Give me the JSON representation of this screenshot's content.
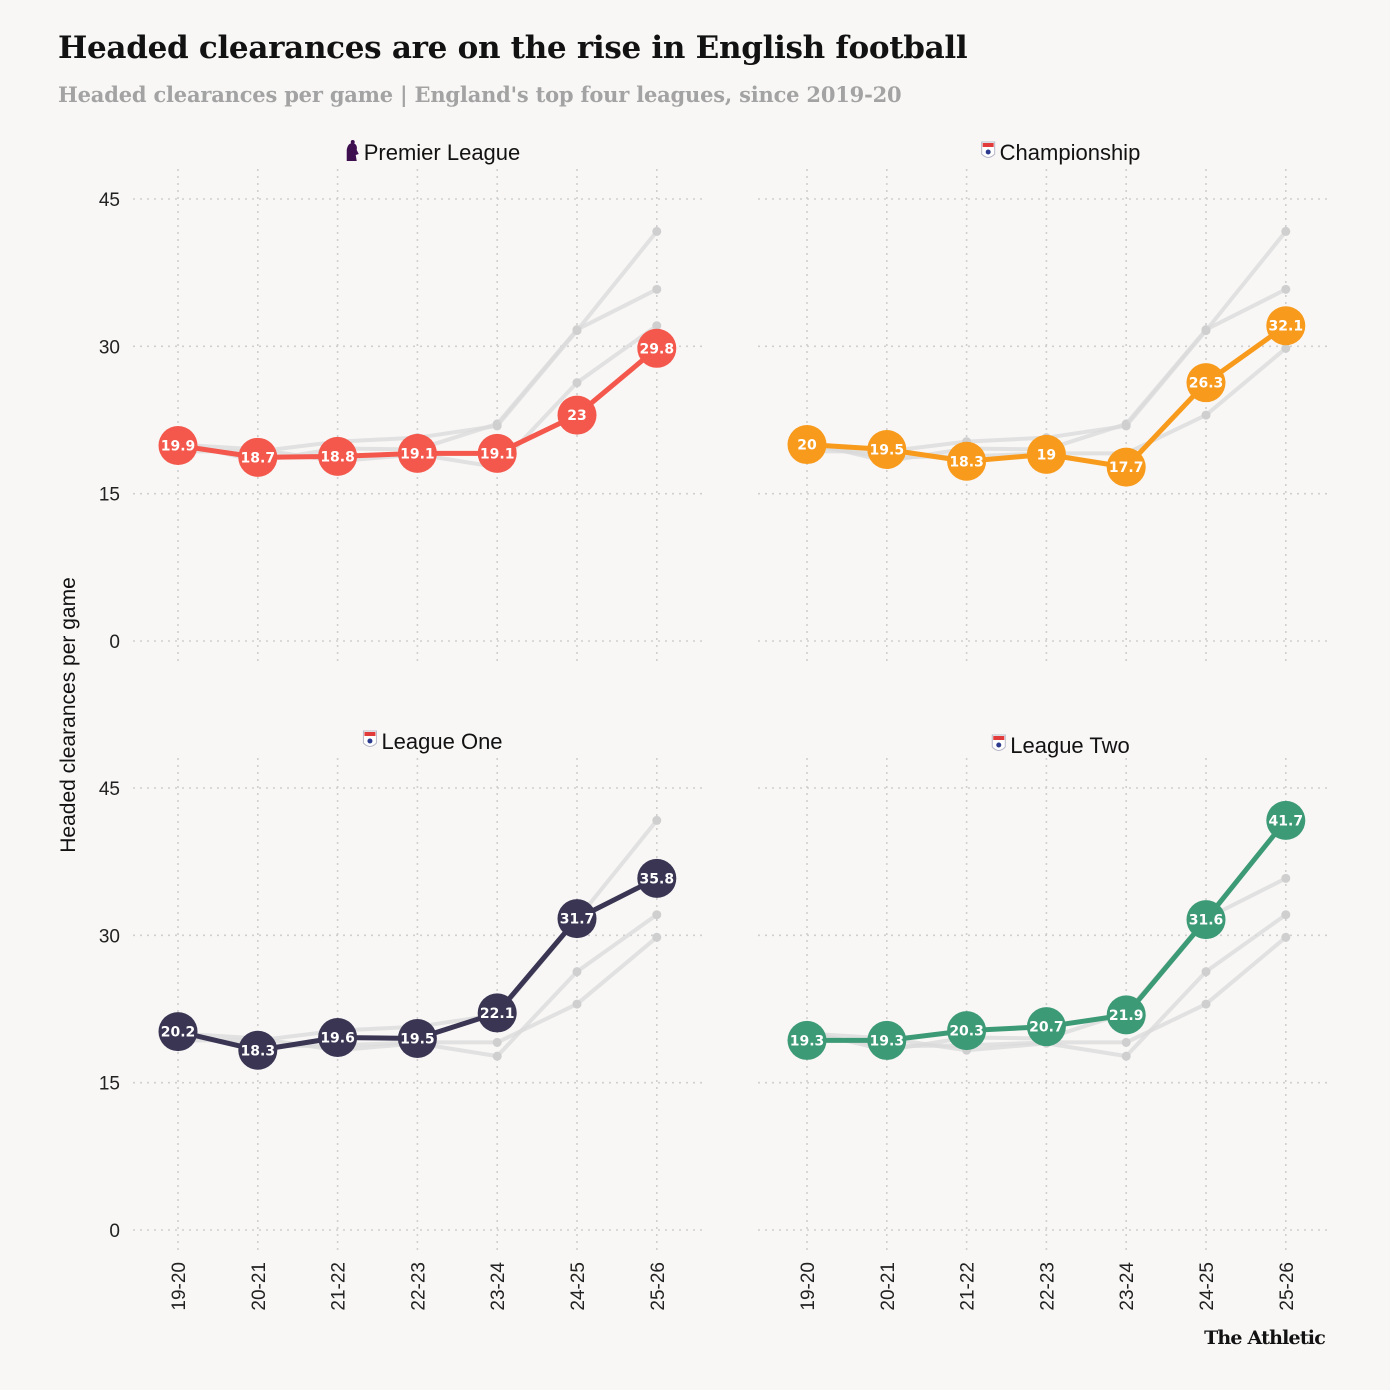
{
  "title": "Headed clearances are on the rise in English football",
  "subtitle": "Headed clearances per game | England's top four leagues, since 2019-20",
  "brand": "The Athletic",
  "chart_data": {
    "type": "line",
    "layout": "small-multiples-2x2",
    "ylabel": "Headed clearances per game",
    "ylim": [
      0,
      45
    ],
    "yticks": [
      0,
      15,
      30,
      45
    ],
    "grid": true,
    "categories": [
      "19-20",
      "20-21",
      "21-22",
      "22-23",
      "23-24",
      "24-25",
      "25-26"
    ],
    "series": [
      {
        "name": "Premier League",
        "color": "#f4574b",
        "icon": "premier-league-lion-icon",
        "values": [
          19.9,
          18.7,
          18.8,
          19.1,
          19.1,
          23,
          29.8
        ]
      },
      {
        "name": "Championship",
        "color": "#f89a1c",
        "icon": "efl-badge-icon",
        "values": [
          20,
          19.5,
          18.3,
          19,
          17.7,
          26.3,
          32.1
        ]
      },
      {
        "name": "League One",
        "color": "#3a3553",
        "icon": "efl-badge-icon",
        "values": [
          20.2,
          18.3,
          19.6,
          19.5,
          22.1,
          31.7,
          35.8
        ]
      },
      {
        "name": "League Two",
        "color": "#3d9a76",
        "icon": "efl-badge-icon",
        "values": [
          19.3,
          19.3,
          20.3,
          20.7,
          21.9,
          31.6,
          41.7
        ]
      }
    ],
    "background_series_color": "#d9d9d9"
  }
}
